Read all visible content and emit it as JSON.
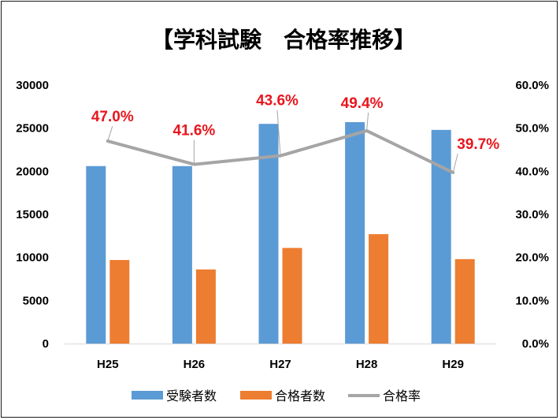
{
  "chart_data": {
    "type": "bar",
    "title": "【学科試験　合格率推移】",
    "categories": [
      "H25",
      "H26",
      "H27",
      "H28",
      "H29"
    ],
    "y_left": {
      "ticks": [
        "30000",
        "25000",
        "20000",
        "15000",
        "10000",
        "5000",
        "0"
      ],
      "ylim": [
        0,
        30000
      ]
    },
    "y_right": {
      "ticks": [
        "60.0%",
        "50.0%",
        "40.0%",
        "30.0%",
        "20.0%",
        "10.0%",
        "0.0%"
      ],
      "ylim": [
        0,
        60
      ]
    },
    "series": [
      {
        "name": "受験者数",
        "type": "bar",
        "axis": "left",
        "color": "#5b9bd5",
        "values": [
          20600,
          20600,
          25500,
          25700,
          24800
        ]
      },
      {
        "name": "合格者数",
        "type": "bar",
        "axis": "left",
        "color": "#ed7d31",
        "values": [
          9700,
          8600,
          11100,
          12700,
          9800
        ]
      },
      {
        "name": "合格率",
        "type": "line",
        "axis": "right",
        "color": "#a5a5a5",
        "values": [
          47.0,
          41.6,
          43.6,
          49.4,
          39.7
        ],
        "labels": [
          "47.0%",
          "41.6%",
          "43.6%",
          "49.4%",
          "39.7%"
        ],
        "label_color": "#e8161d"
      }
    ],
    "grid": false,
    "legend": "bottom"
  }
}
